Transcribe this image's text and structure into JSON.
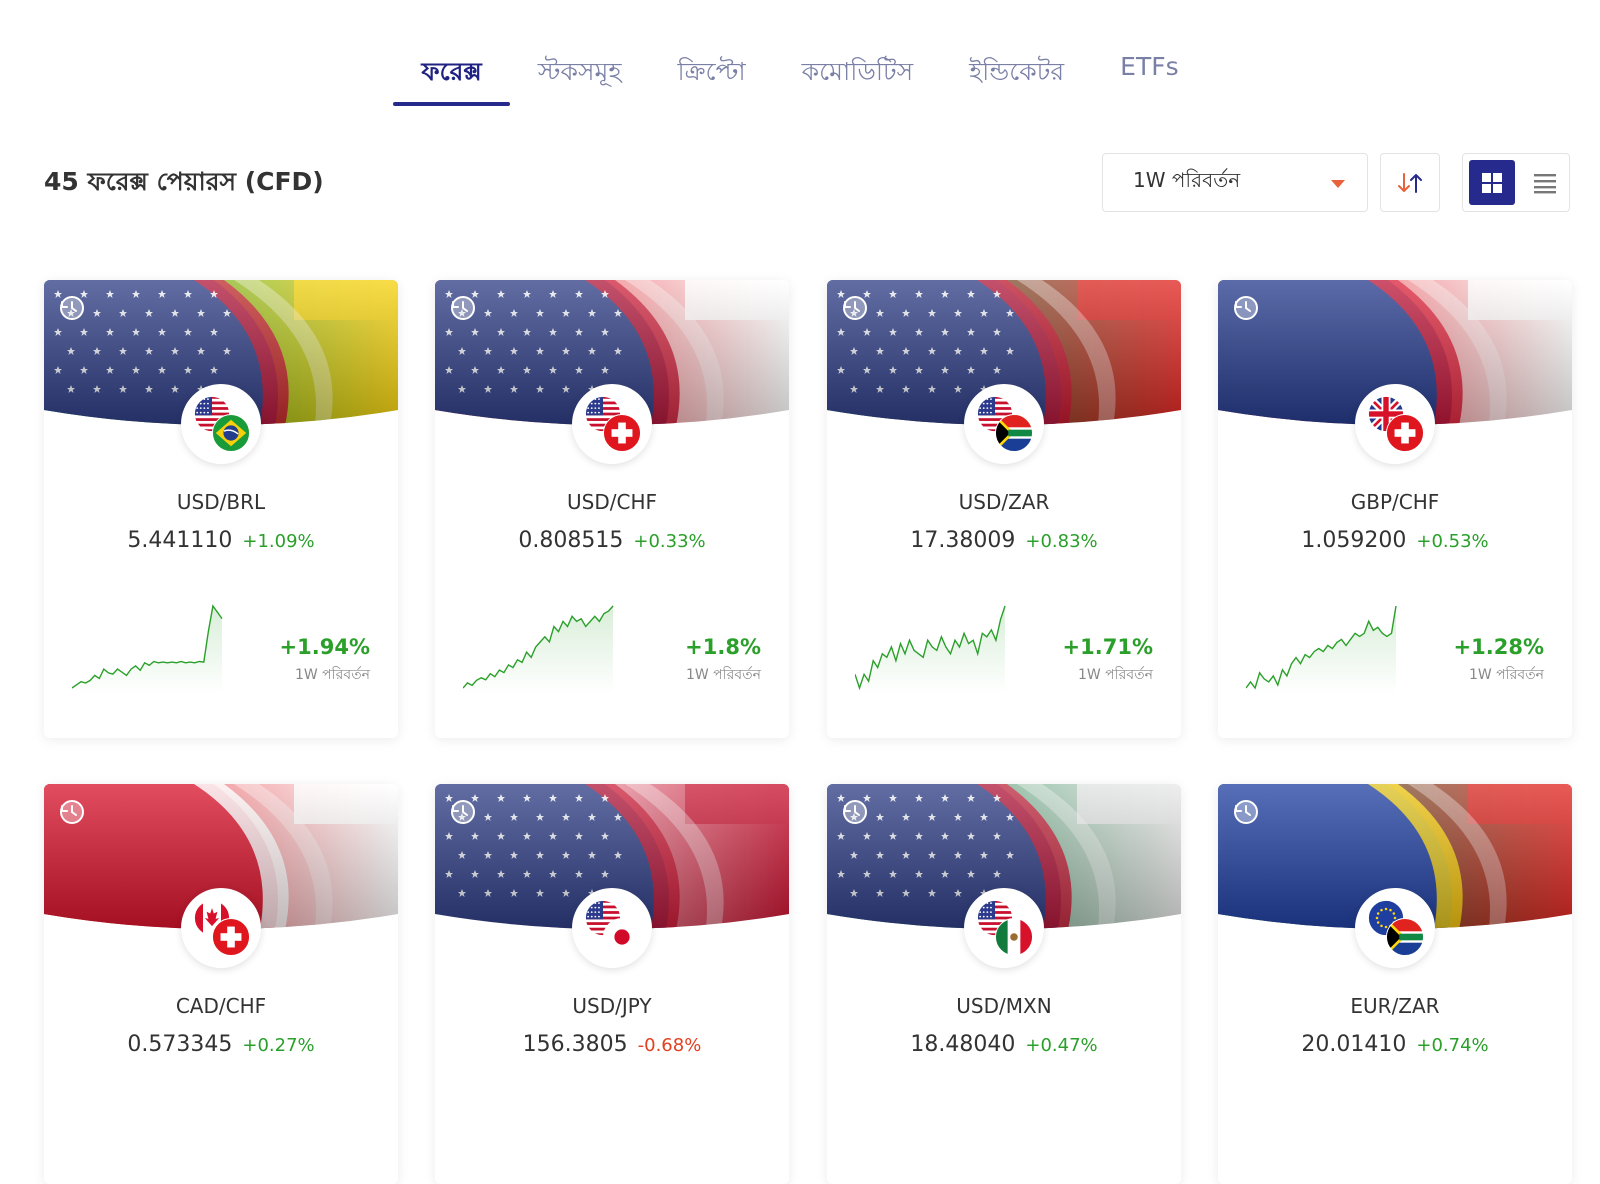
{
  "tabs": [
    {
      "label": "ফরেক্স",
      "active": true
    },
    {
      "label": "স্টকসমূহ",
      "active": false
    },
    {
      "label": "ক্রিপ্টো",
      "active": false
    },
    {
      "label": "কমোডিটিস",
      "active": false
    },
    {
      "label": "ইন্ডিকেটর",
      "active": false
    },
    {
      "label": "ETFs",
      "active": false
    }
  ],
  "heading": "45 ফরেক্স পেয়ারস (CFD)",
  "sort": {
    "selected": "1W পরিবর্তন",
    "direction_icon": "sort-arrows-icon"
  },
  "view": {
    "active": "grid",
    "grid_icon": "grid-view-icon",
    "list_icon": "list-view-icon"
  },
  "colors": {
    "accent": "#262a8d",
    "positive": "#2aa02a",
    "negative": "#e2401f",
    "caret": "#e8623b"
  },
  "cards": [
    {
      "symbol": "USD/BRL",
      "price": "5.441110",
      "change": "+1.09%",
      "direction": "up",
      "week_change": "+1.94%",
      "week_label": "1W পরিবর্তন",
      "flags": [
        "us",
        "br"
      ],
      "spark": [
        0,
        0.5,
        1,
        0.8,
        1.2,
        2,
        1.5,
        3,
        2.4,
        2.2,
        3,
        2.5,
        2,
        3,
        3.5,
        2.8,
        4,
        3.6,
        4.2,
        4,
        4.1,
        4,
        4.1,
        4,
        4.2,
        4,
        4.1,
        4,
        4.2,
        4.1,
        9,
        13,
        12,
        11
      ]
    },
    {
      "symbol": "USD/CHF",
      "price": "0.808515",
      "change": "+0.33%",
      "direction": "up",
      "week_change": "+1.8%",
      "week_label": "1W পরিবর্তন",
      "flags": [
        "us",
        "ch"
      ],
      "spark": [
        0,
        1,
        0.5,
        1.5,
        2,
        1.6,
        2.8,
        2.2,
        3.5,
        3,
        4.5,
        4,
        5.5,
        5,
        7,
        6,
        8,
        9,
        10,
        9,
        12,
        11,
        13,
        12,
        14,
        13,
        13.5,
        12,
        13,
        14,
        13,
        14.5,
        15,
        16
      ]
    },
    {
      "symbol": "USD/ZAR",
      "price": "17.38009",
      "change": "+0.83%",
      "direction": "up",
      "week_change": "+1.71%",
      "week_label": "1W পরিবর্তন",
      "flags": [
        "us",
        "za"
      ],
      "spark": [
        2,
        0,
        2,
        1,
        4,
        3,
        5,
        4.5,
        6,
        4,
        6.5,
        5,
        7,
        5.5,
        5,
        4.5,
        7,
        6,
        5.5,
        7.5,
        6,
        5,
        7,
        6,
        8,
        6.5,
        7,
        5,
        8,
        7.5,
        8.5,
        7,
        10,
        12
      ]
    },
    {
      "symbol": "GBP/CHF",
      "price": "1.059200",
      "change": "+0.53%",
      "direction": "up",
      "week_change": "+1.28%",
      "week_label": "1W পরিবর্তন",
      "flags": [
        "gb",
        "ch"
      ],
      "spark": [
        0,
        1,
        0,
        2.5,
        1.5,
        1,
        2,
        0.5,
        3,
        2,
        4,
        5,
        4,
        5.5,
        5,
        6,
        6.5,
        6,
        7,
        6.5,
        7.5,
        8,
        7,
        8,
        9,
        8.5,
        9,
        11,
        9.5,
        10,
        9,
        8.5,
        9,
        13.5
      ]
    },
    {
      "symbol": "CAD/CHF",
      "price": "0.573345",
      "change": "+0.27%",
      "direction": "up",
      "flags": [
        "ca",
        "ch"
      ]
    },
    {
      "symbol": "USD/JPY",
      "price": "156.3805",
      "change": "-0.68%",
      "direction": "down",
      "flags": [
        "us",
        "jp"
      ]
    },
    {
      "symbol": "USD/MXN",
      "price": "18.48040",
      "change": "+0.47%",
      "direction": "up",
      "flags": [
        "us",
        "mx"
      ]
    },
    {
      "symbol": "EUR/ZAR",
      "price": "20.01410",
      "change": "+0.74%",
      "direction": "up",
      "flags": [
        "eu",
        "za"
      ]
    }
  ]
}
